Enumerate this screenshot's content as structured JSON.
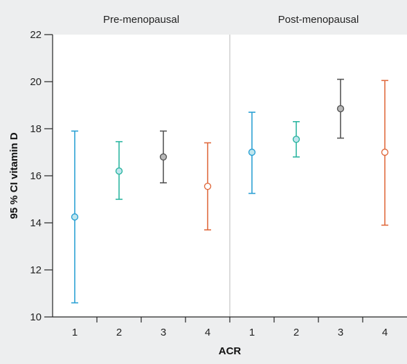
{
  "chart_data": {
    "type": "errorbar",
    "xlabel": "ACR",
    "ylabel": "95 % CI vitamin D",
    "ylim": [
      10,
      22
    ],
    "yticks": [
      10,
      12,
      14,
      16,
      18,
      20,
      22
    ],
    "grid": false,
    "panels": [
      {
        "title": "Pre-menopausal",
        "categories": [
          "1",
          "2",
          "3",
          "4"
        ],
        "points": [
          {
            "category": "1",
            "mean": 14.25,
            "lower": 10.6,
            "upper": 17.9,
            "color": "#2aa0d4"
          },
          {
            "category": "2",
            "mean": 16.2,
            "lower": 15.0,
            "upper": 17.45,
            "color": "#2bb5a0"
          },
          {
            "category": "3",
            "mean": 16.8,
            "lower": 15.7,
            "upper": 17.9,
            "color": "#555555"
          },
          {
            "category": "4",
            "mean": 15.55,
            "lower": 13.7,
            "upper": 17.4,
            "color": "#e06a3e"
          }
        ]
      },
      {
        "title": "Post-menopausal",
        "categories": [
          "1",
          "2",
          "3",
          "4"
        ],
        "points": [
          {
            "category": "1",
            "mean": 17.0,
            "lower": 15.25,
            "upper": 18.7,
            "color": "#2aa0d4"
          },
          {
            "category": "2",
            "mean": 17.55,
            "lower": 16.8,
            "upper": 18.3,
            "color": "#2bb5a0"
          },
          {
            "category": "3",
            "mean": 18.85,
            "lower": 17.6,
            "upper": 20.1,
            "color": "#555555"
          },
          {
            "category": "4",
            "mean": 17.0,
            "lower": 13.9,
            "upper": 20.05,
            "color": "#e06a3e"
          }
        ]
      }
    ]
  },
  "colors": {
    "background": "#edeeef",
    "plot_background": "#ffffff",
    "axis": "#222222",
    "panel_divider": "#d0d0d0"
  }
}
